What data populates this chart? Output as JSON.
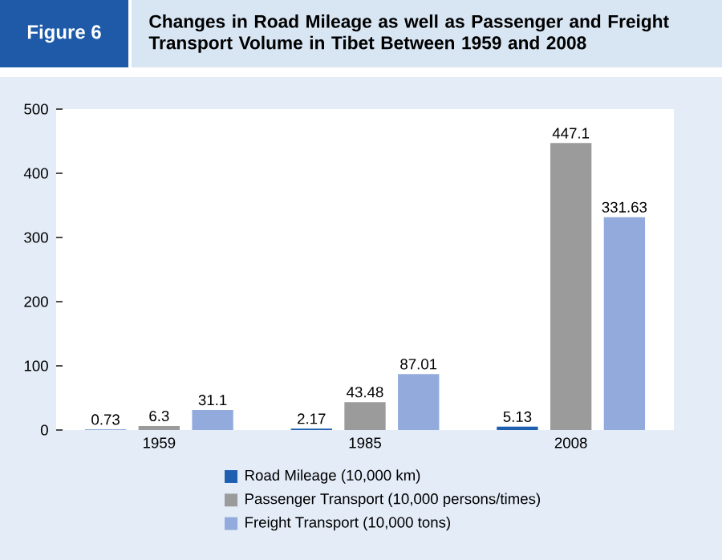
{
  "chart_data": {
    "type": "bar",
    "title": "Changes in Road Mileage as well as Passenger and Freight Transport Volume in Tibet Between 1959 and 2008",
    "annotations": [
      "Figure 6"
    ],
    "categories": [
      "1959",
      "1985",
      "2008"
    ],
    "series": [
      {
        "name": "Road Mileage (10,000 km)",
        "color": "#1f5fb0",
        "values": [
          0.73,
          2.17,
          5.13
        ],
        "value_labels": [
          "0.73",
          "2.17",
          "5.13"
        ]
      },
      {
        "name": "Passenger Transport (10,000 persons/times)",
        "color": "#9b9b9b",
        "values": [
          6.3,
          43.48,
          447.1
        ],
        "value_labels": [
          "6.3",
          "43.48",
          "447.1"
        ]
      },
      {
        "name": "Freight Transport (10,000 tons)",
        "color": "#93abdc",
        "values": [
          31.1,
          87.01,
          331.63
        ],
        "value_labels": [
          "31.1",
          "87.01",
          "331.63"
        ]
      }
    ],
    "ylim": [
      0,
      500
    ],
    "yticks": [
      0,
      100,
      200,
      300,
      400,
      500
    ],
    "legend": "bottom"
  }
}
